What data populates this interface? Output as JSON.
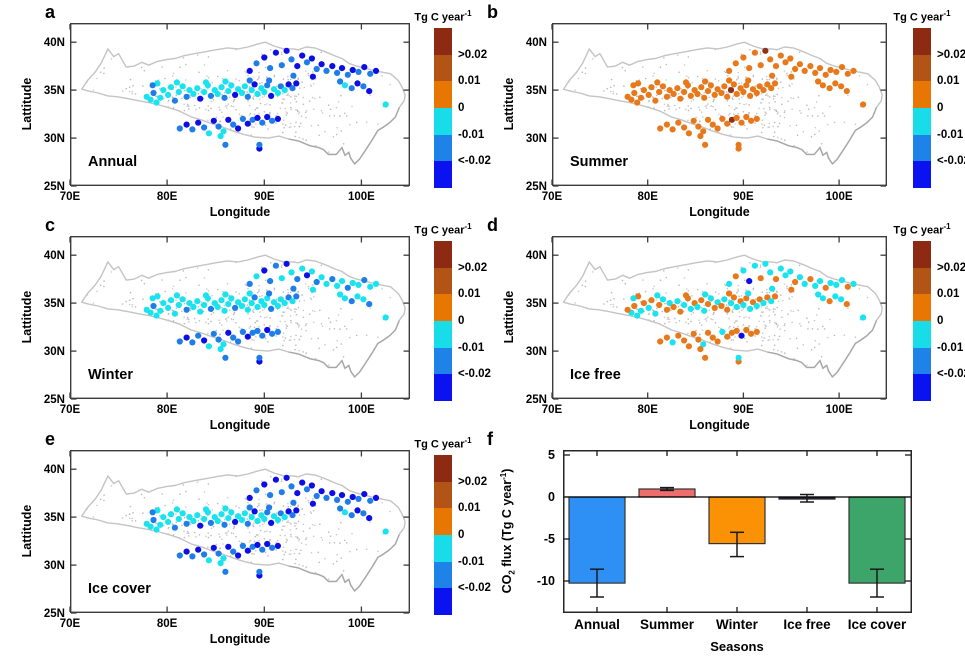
{
  "figure": {
    "panel_letters": [
      "a",
      "b",
      "c",
      "d",
      "e",
      "f"
    ]
  },
  "chart_data": {
    "maps": {
      "type": "scatter-map",
      "lon_range": [
        70,
        105
      ],
      "lat_range": [
        25,
        42
      ],
      "xlabel": "Longitude",
      "ylabel": "Lattitude",
      "x_ticks": [
        {
          "v": 70,
          "label": "70E"
        },
        {
          "v": 80,
          "label": "80E"
        },
        {
          "v": 90,
          "label": "90E"
        },
        {
          "v": 100,
          "label": "100E"
        }
      ],
      "y_ticks": [
        {
          "v": 40,
          "label": "40N"
        },
        {
          "v": 35,
          "label": "35N"
        },
        {
          "v": 30,
          "label": "30N"
        },
        {
          "v": 25,
          "label": "25N"
        }
      ],
      "colorbar": {
        "title_base": "Tg C year",
        "title_sup": "-1",
        "labels": [
          ">0.02",
          "0.01",
          "0",
          "-0.01",
          "<-0.02"
        ],
        "colors": [
          "#8C2A12",
          "#B25415",
          "#E87602",
          "#18DDE8",
          "#1E82E8",
          "#0A12F0"
        ]
      },
      "panels": [
        {
          "letter": "a",
          "label": "Annual"
        },
        {
          "letter": "b",
          "label": "Summer"
        },
        {
          "letter": "c",
          "label": "Winter"
        },
        {
          "letter": "d",
          "label": "Ice free"
        },
        {
          "letter": "e",
          "label": "Ice cover"
        }
      ],
      "color_classes": {
        "c": "#18E3EE",
        "b": "#1E7DE8",
        "n": "#0D0DE8",
        "o": "#E8791A",
        "r": "#8F3018"
      },
      "code_order": "annual,summer,winter,icefree,icecover",
      "lakes": [
        [
          79.0,
          35.7,
          "cococ"
        ],
        [
          79.3,
          34.2,
          "coccc"
        ],
        [
          79.6,
          35.0,
          "cococ"
        ],
        [
          80.1,
          34.5,
          "coccc"
        ],
        [
          80.4,
          35.3,
          "cococ"
        ],
        [
          80.8,
          33.9,
          "boccb"
        ],
        [
          81.2,
          34.8,
          "cococ"
        ],
        [
          81.6,
          35.4,
          "coccc"
        ],
        [
          82.0,
          34.3,
          "bobob"
        ],
        [
          82.3,
          35.0,
          "coccc"
        ],
        [
          82.7,
          34.6,
          "cococ"
        ],
        [
          83.1,
          35.2,
          "coccc"
        ],
        [
          83.4,
          34.1,
          "nocon"
        ],
        [
          83.8,
          34.8,
          "coccc"
        ],
        [
          84.2,
          35.5,
          "cococ"
        ],
        [
          84.5,
          34.4,
          "bobcb"
        ],
        [
          84.9,
          35.0,
          "cococ"
        ],
        [
          85.2,
          34.6,
          "coccc"
        ],
        [
          85.6,
          35.3,
          "cococ"
        ],
        [
          85.9,
          34.2,
          "boccb"
        ],
        [
          86.3,
          34.9,
          "cococ"
        ],
        [
          86.6,
          35.5,
          "coccc"
        ],
        [
          87.0,
          34.5,
          "nobon"
        ],
        [
          87.3,
          35.1,
          "coccc"
        ],
        [
          87.7,
          34.7,
          "cococ"
        ],
        [
          88.0,
          35.4,
          "coccc"
        ],
        [
          88.3,
          34.3,
          "bocob"
        ],
        [
          88.7,
          35.0,
          "crccc"
        ],
        [
          89.0,
          35.6,
          "nobon"
        ],
        [
          89.3,
          34.6,
          "coccc"
        ],
        [
          89.7,
          35.2,
          "cococ"
        ],
        [
          90.0,
          34.8,
          "coccc"
        ],
        [
          90.3,
          35.5,
          "bocob"
        ],
        [
          90.7,
          34.4,
          "nobcn"
        ],
        [
          91.0,
          35.1,
          "cococ"
        ],
        [
          91.4,
          34.7,
          "coccc"
        ],
        [
          91.7,
          35.4,
          "bocob"
        ],
        [
          92.1,
          35.0,
          "coccc"
        ],
        [
          92.5,
          35.6,
          "nobon"
        ],
        [
          92.9,
          35.2,
          "boccb"
        ],
        [
          93.3,
          35.7,
          "nobon"
        ],
        [
          90.5,
          36.0,
          "bobcb"
        ],
        [
          88.5,
          36.0,
          "bocob"
        ],
        [
          86.0,
          35.9,
          "coccc"
        ],
        [
          84.0,
          35.8,
          "cococ"
        ],
        [
          81.0,
          35.8,
          "coccc"
        ],
        [
          88.5,
          37.0,
          "nobcn"
        ],
        [
          89.2,
          37.8,
          "bocob"
        ],
        [
          90.0,
          38.4,
          "noncn"
        ],
        [
          90.6,
          37.3,
          "bobnb"
        ],
        [
          91.2,
          38.9,
          "nobcn"
        ],
        [
          91.8,
          37.6,
          "bocob"
        ],
        [
          92.3,
          39.1,
          "nrncn"
        ],
        [
          92.8,
          38.2,
          "boccb"
        ],
        [
          93.4,
          37.5,
          "nobon"
        ],
        [
          93.9,
          38.6,
          "noccn"
        ],
        [
          94.4,
          37.9,
          "boncb"
        ],
        [
          94.9,
          38.3,
          "noccn"
        ],
        [
          95.4,
          37.2,
          "bobob"
        ],
        [
          95.9,
          37.7,
          "noccn"
        ],
        [
          96.4,
          37.0,
          "boccb"
        ],
        [
          97.0,
          37.5,
          "nobon"
        ],
        [
          97.5,
          36.8,
          "boccb"
        ],
        [
          98.0,
          37.3,
          "noccn"
        ],
        [
          98.6,
          36.6,
          "bobob"
        ],
        [
          99.1,
          37.1,
          "noccn"
        ],
        [
          99.7,
          36.9,
          "boccb"
        ],
        [
          100.3,
          37.4,
          "nobcn"
        ],
        [
          100.9,
          36.7,
          "bocob"
        ],
        [
          101.5,
          37.0,
          "noccn"
        ],
        [
          93.0,
          36.5,
          "bobcb"
        ],
        [
          95.0,
          36.4,
          "nocon"
        ],
        [
          97.8,
          35.9,
          "boccb"
        ],
        [
          98.3,
          35.5,
          "coccc"
        ],
        [
          99.0,
          35.2,
          "bobob"
        ],
        [
          99.6,
          35.7,
          "noccn"
        ],
        [
          100.2,
          35.4,
          "boccb"
        ],
        [
          100.8,
          34.9,
          "nobon"
        ],
        [
          102.5,
          33.5,
          "coccc"
        ],
        [
          81.3,
          31.0,
          "bobob"
        ],
        [
          82.0,
          31.4,
          "nonon"
        ],
        [
          82.6,
          30.9,
          "bobcb"
        ],
        [
          83.2,
          31.6,
          "nobon"
        ],
        [
          83.8,
          31.1,
          "bonob"
        ],
        [
          84.3,
          30.5,
          "cococ"
        ],
        [
          84.8,
          31.8,
          "nobon"
        ],
        [
          85.3,
          31.2,
          "bobob"
        ],
        [
          85.8,
          30.7,
          "coccc"
        ],
        [
          86.3,
          31.9,
          "nonon"
        ],
        [
          86.8,
          31.4,
          "bobob"
        ],
        [
          87.3,
          31.0,
          "nobon"
        ],
        [
          87.8,
          32.0,
          "bobcb"
        ],
        [
          88.3,
          31.5,
          "nonon"
        ],
        [
          88.8,
          31.9,
          "brbob"
        ],
        [
          89.3,
          32.1,
          "nobon"
        ],
        [
          89.8,
          31.6,
          "bobnb"
        ],
        [
          90.3,
          32.2,
          "nonon"
        ],
        [
          90.8,
          31.8,
          "bobob"
        ],
        [
          91.4,
          32.0,
          "nobon"
        ],
        [
          86.0,
          29.3,
          "bobob"
        ],
        [
          89.5,
          28.9,
          "nonon"
        ],
        [
          89.5,
          29.3,
          "bobcb"
        ],
        [
          85.5,
          30.2,
          "cococ"
        ],
        [
          78.3,
          34.0,
          "coccc"
        ],
        [
          78.6,
          34.7,
          "bobob"
        ],
        [
          78.9,
          33.7,
          "coccc"
        ],
        [
          78.5,
          35.5,
          "boccb"
        ],
        [
          77.9,
          34.3,
          "cococ"
        ]
      ]
    },
    "bar": {
      "type": "bar",
      "categories": [
        "Annual",
        "Summer",
        "Winter",
        "Ice free",
        "Ice cover"
      ],
      "values": [
        -10.25,
        0.95,
        -5.55,
        -0.25,
        -10.25
      ],
      "err_low": [
        -11.9,
        0.78,
        -7.1,
        -0.6,
        -11.9
      ],
      "err_high": [
        -8.6,
        1.12,
        -4.2,
        0.3,
        -8.6
      ],
      "colors": [
        "#2E90F5",
        "#EE6E6E",
        "#FB9104",
        "#1B1B3E",
        "#3DA56A"
      ],
      "ylabel_parts": {
        "pre": "CO",
        "sub": "2",
        "mid": " flux (Tg C year",
        "sup": "-1",
        "post": ")"
      },
      "xlabel": "Seasons",
      "y_ticks": [
        {
          "v": 5,
          "label": "5"
        },
        {
          "v": 0,
          "label": "0"
        },
        {
          "v": -5,
          "label": "-5"
        },
        {
          "v": -10,
          "label": "-10"
        }
      ],
      "ylim": [
        -13.8,
        5.6
      ],
      "grid": false,
      "legend": "none"
    }
  }
}
